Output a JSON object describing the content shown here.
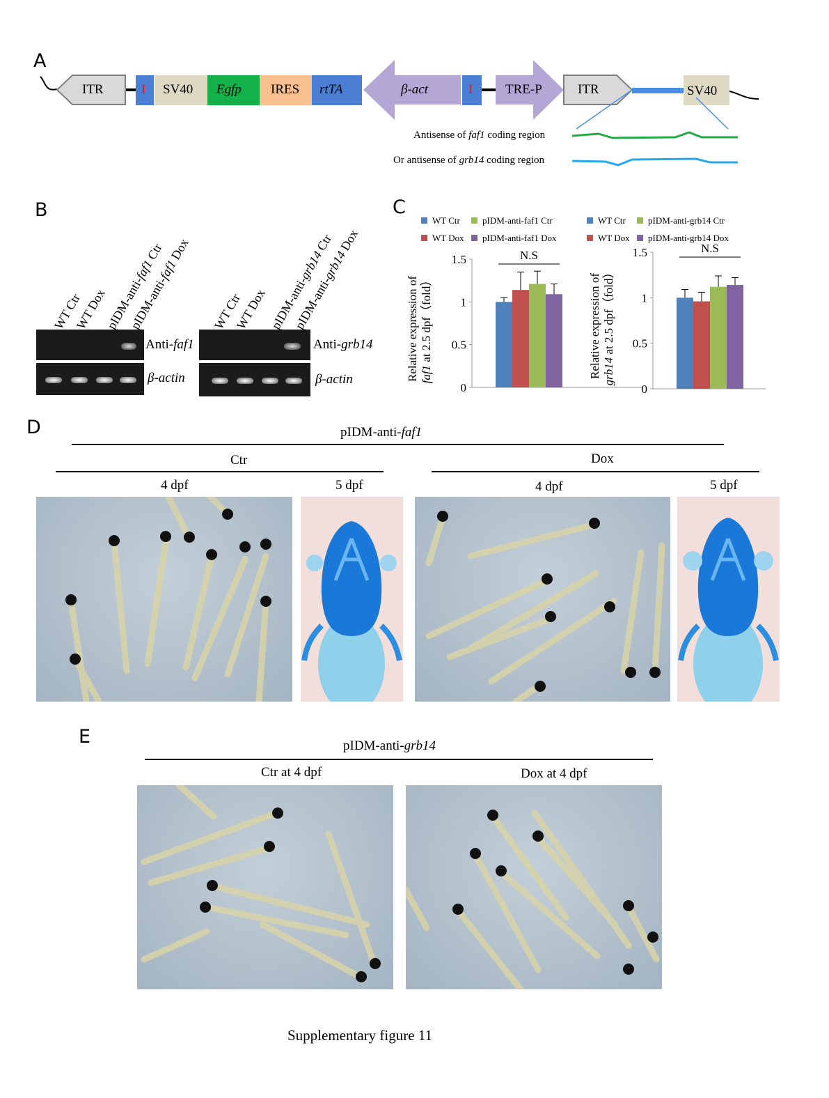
{
  "panels": {
    "a": "A",
    "b": "B",
    "c": "C",
    "d": "D",
    "e": "E"
  },
  "construct": {
    "itr_left": "ITR",
    "i1": "I",
    "sv40_1": "SV40",
    "egfp": "Egfp",
    "ires": "IRES",
    "rtta": "rtTA",
    "bact": "β-act",
    "i2": "I",
    "trep": "TRE-P",
    "itr_right": "ITR",
    "sv40_2": "SV40",
    "antisense_faf1_pre": "Antisense of ",
    "antisense_faf1_gene": "faf1",
    "antisense_faf1_post": " coding region",
    "antisense_grb14_pre": "Or antisense of ",
    "antisense_grb14_gene": "grb14",
    "antisense_grb14_post": " coding region",
    "colors": {
      "itr": "#d9d9d9",
      "i": "#4a7fd4",
      "sv40": "#ddd9c3",
      "egfp": "#14b04a",
      "ires": "#f9c08f",
      "rtta": "#4a7fd4",
      "bact": "#b4a7d6",
      "trep": "#b4a7d6",
      "faf1_line": "#22aa44",
      "grb14_line": "#22aaee",
      "insert": "#4a90e2"
    }
  },
  "gel": {
    "left_lanes": [
      "WT Ctr",
      "WT Dox",
      "pIDM-anti-faf1 Ctr",
      "pIDM-anti-faf1 Dox"
    ],
    "right_lanes": [
      "WT Ctr",
      "WT Dox",
      "pIDM-anti-grb14 Ctr",
      "pIDM-anti-grb14 Dox"
    ],
    "left_top_label_pre": "Anti-",
    "left_top_label_gene": "faf1",
    "right_top_label_pre": "Anti-",
    "right_top_label_gene": "grb14",
    "actin_label": "β-actin"
  },
  "legend_left": [
    {
      "name": "WT Ctr",
      "color": "#4f81bd"
    },
    {
      "name": "pIDM-anti-faf1 Ctr",
      "color": "#9bbb59"
    },
    {
      "name": "WT Dox",
      "color": "#c0504d"
    },
    {
      "name": "pIDM-anti-faf1 Dox",
      "color": "#8064a2"
    }
  ],
  "legend_right": [
    {
      "name": "WT Ctr",
      "color": "#4f81bd"
    },
    {
      "name": "pIDM-anti-grb14 Ctr",
      "color": "#9bbb59"
    },
    {
      "name": "WT Dox",
      "color": "#c0504d"
    },
    {
      "name": "pIDM-anti-grb14 Dox",
      "color": "#8064a2"
    }
  ],
  "chart_data": [
    {
      "type": "bar",
      "categories": [
        "WT Ctr",
        "WT Dox",
        "pIDM-anti-faf1 Ctr",
        "pIDM-anti-faf1 Dox"
      ],
      "values": [
        1.0,
        1.14,
        1.21,
        1.09
      ],
      "errors": [
        0.05,
        0.21,
        0.15,
        0.12
      ],
      "colors": [
        "#4f81bd",
        "#c0504d",
        "#9bbb59",
        "#8064a2"
      ],
      "ylabel_line1": "Relative expression of",
      "ylabel_line2_gene": "faf1",
      "ylabel_line2_rest": " at 2.5 dpf（fold）",
      "ylim": [
        0,
        1.5
      ],
      "yticks": [
        "0",
        "0.5",
        "1",
        "1.5"
      ],
      "annotation": "N.S"
    },
    {
      "type": "bar",
      "categories": [
        "WT Ctr",
        "WT Dox",
        "pIDM-anti-grb14 Ctr",
        "pIDM-anti-grb14 Dox"
      ],
      "values": [
        1.0,
        0.96,
        1.12,
        1.14
      ],
      "errors": [
        0.09,
        0.1,
        0.12,
        0.08
      ],
      "colors": [
        "#4f81bd",
        "#c0504d",
        "#9bbb59",
        "#8064a2"
      ],
      "ylabel_line1": "Relative expression of",
      "ylabel_line2_gene": "grb14",
      "ylabel_line2_rest": " at 2.5 dpf（fold）",
      "ylim": [
        0,
        1.5
      ],
      "yticks": [
        "0",
        "0.5",
        "1",
        "1.5"
      ],
      "annotation": "N.S"
    }
  ],
  "panel_d": {
    "title_pre": "pIDM-anti-",
    "title_gene": "faf1",
    "ctr": "Ctr",
    "dox": "Dox",
    "ctr_4dpf": "4 dpf",
    "ctr_5dpf": "5 dpf",
    "dox_4dpf": "4 dpf",
    "dox_5dpf": "5 dpf"
  },
  "panel_e": {
    "title_pre": "pIDM-anti-",
    "title_gene": "grb14",
    "ctr": "Ctr at 4 dpf",
    "dox": "Dox at 4 dpf"
  },
  "caption": "Supplementary figure 11"
}
